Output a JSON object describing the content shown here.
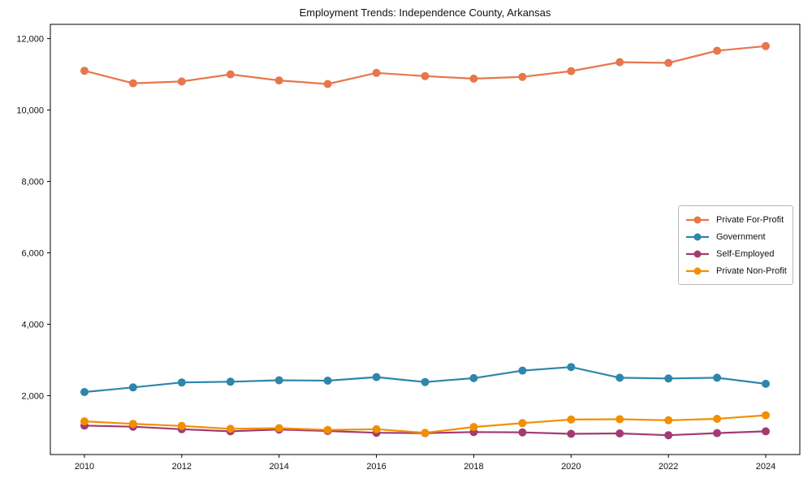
{
  "figure": {
    "background": "#ffffff"
  },
  "chart_data": {
    "type": "line",
    "title": "Employment Trends: Independence County, Arkansas",
    "xlabel": "",
    "ylabel": "",
    "x": [
      2010,
      2011,
      2012,
      2013,
      2014,
      2015,
      2016,
      2017,
      2018,
      2019,
      2020,
      2021,
      2022,
      2023,
      2024
    ],
    "xticks": [
      2010,
      2012,
      2014,
      2016,
      2018,
      2020,
      2022,
      2024
    ],
    "xtick_labels": [
      "2010",
      "2012",
      "2014",
      "2016",
      "2018",
      "2020",
      "2022",
      "2024"
    ],
    "yticks": [
      2000,
      4000,
      6000,
      8000,
      10000,
      12000
    ],
    "ytick_labels": [
      "2,000",
      "4,000",
      "6,000",
      "8,000",
      "10,000",
      "12,000"
    ],
    "xlim": [
      2009.3,
      2024.7
    ],
    "ylim": [
      350,
      12400
    ],
    "grid": false,
    "legend_position": "center right",
    "series": [
      {
        "name": "Private For-Profit",
        "color": "#E8764B",
        "values": [
          11100,
          10750,
          10800,
          11000,
          10830,
          10730,
          11040,
          10950,
          10880,
          10930,
          11090,
          11340,
          11320,
          11660,
          11790
        ]
      },
      {
        "name": "Government",
        "color": "#2E86AB",
        "values": [
          2100,
          2230,
          2370,
          2390,
          2430,
          2420,
          2520,
          2380,
          2490,
          2700,
          2800,
          2500,
          2480,
          2500,
          2330
        ]
      },
      {
        "name": "Self-Employed",
        "color": "#A23B72",
        "values": [
          1160,
          1130,
          1060,
          1000,
          1050,
          1010,
          960,
          950,
          980,
          970,
          930,
          940,
          890,
          950,
          1000
        ]
      },
      {
        "name": "Private Non-Profit",
        "color": "#F18F01",
        "values": [
          1280,
          1210,
          1150,
          1070,
          1090,
          1040,
          1060,
          960,
          1120,
          1230,
          1330,
          1340,
          1310,
          1350,
          1450
        ]
      }
    ]
  }
}
